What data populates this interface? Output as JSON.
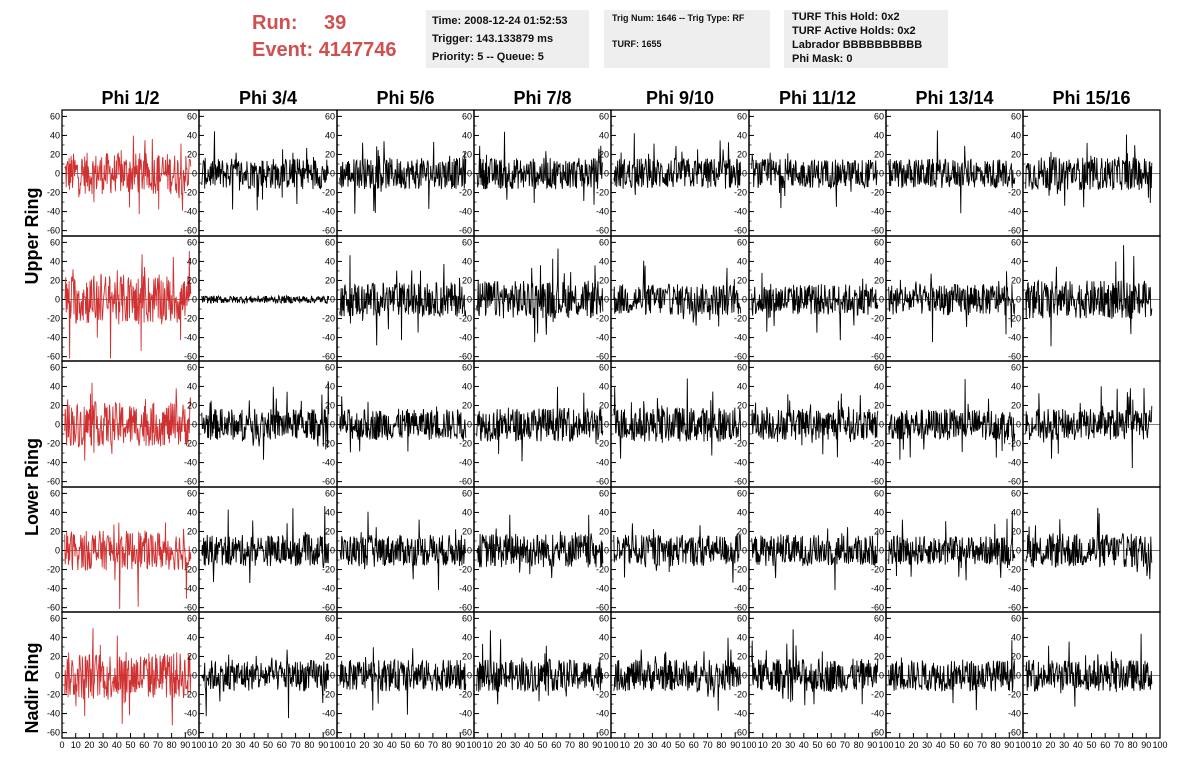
{
  "header": {
    "run_label": "Run:",
    "run_value": "39",
    "event_label": "Event:",
    "event_value": "4147746"
  },
  "info_time": {
    "time": "Time: 2008-12-24 01:52:53",
    "trigger": "Trigger: 143.133879 ms",
    "priority": "Priority: 5 -- Queue: 5"
  },
  "info_trig": {
    "trig": "Trig Num: 1646 -- Trig Type: RF",
    "turf": "TURF: 1655"
  },
  "info_turf": {
    "this_hold": "TURF This Hold: 0x2",
    "active_holds": "TURF Active Holds: 0x2",
    "labrador": "Labrador BBBBBBBBBB",
    "phi_mask": "Phi Mask: 0"
  },
  "colors": {
    "highlight_trace": "#d03030",
    "trace": "#000000",
    "header_red": "#d05050",
    "info_bg": "#eeeeee"
  },
  "chart_data": {
    "type": "line",
    "columns": [
      "Phi 1/2",
      "Phi 3/4",
      "Phi 5/6",
      "Phi 7/8",
      "Phi 9/10",
      "Phi 11/12",
      "Phi 13/14",
      "Phi 15/16"
    ],
    "rows": [
      "Upper Ring",
      "",
      "Lower Ring",
      "",
      "Nadir Ring"
    ],
    "ylim": [
      -65,
      65
    ],
    "xlim": [
      0,
      100
    ],
    "yticks": [
      -60,
      -40,
      -20,
      0,
      20,
      40,
      60
    ],
    "xticks": [
      0,
      10,
      20,
      30,
      40,
      50,
      60,
      70,
      80,
      90,
      100
    ],
    "highlight_column": 0,
    "trace_amplitude": [
      [
        40,
        30,
        30,
        30,
        30,
        28,
        28,
        32
      ],
      [
        48,
        5,
        33,
        36,
        30,
        30,
        30,
        36
      ],
      [
        42,
        30,
        30,
        32,
        33,
        30,
        30,
        30
      ],
      [
        38,
        30,
        30,
        33,
        30,
        30,
        28,
        33
      ],
      [
        45,
        30,
        30,
        30,
        30,
        32,
        30,
        30
      ]
    ]
  }
}
